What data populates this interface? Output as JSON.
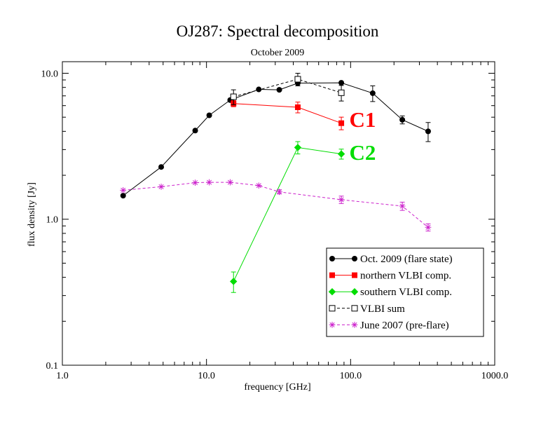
{
  "chart_data": {
    "type": "line",
    "title": "OJ287: Spectral decomposition",
    "subtitle": "October 2009",
    "xlabel": "frequency [GHz]",
    "ylabel": "flux density [Jy]",
    "xscale": "log",
    "yscale": "log",
    "xlim": [
      1.0,
      1000.0
    ],
    "ylim": [
      0.1,
      12.0
    ],
    "x_ticks": [
      {
        "value": 1.0,
        "label": "1.0"
      },
      {
        "value": 10.0,
        "label": "10.0"
      },
      {
        "value": 100.0,
        "label": "100.0"
      },
      {
        "value": 1000.0,
        "label": "1000.0"
      }
    ],
    "y_ticks": [
      {
        "value": 0.1,
        "label": "0.1"
      },
      {
        "value": 1.0,
        "label": "1.0"
      },
      {
        "value": 10.0,
        "label": "10.0"
      }
    ],
    "legend_position": "bottom-right",
    "series": [
      {
        "name": "Oct. 2009 (flare state)",
        "color": "#000000",
        "marker": "circle",
        "line": "solid",
        "x": [
          2.64,
          4.85,
          8.35,
          10.45,
          14.6,
          23.05,
          32.0,
          43.0,
          86.2,
          142.3,
          228.4,
          345.0
        ],
        "y": [
          1.45,
          2.28,
          4.05,
          5.15,
          6.55,
          7.75,
          7.7,
          8.55,
          8.6,
          7.3,
          4.8,
          4.0
        ],
        "err": [
          0,
          0,
          0,
          0,
          0,
          0,
          0,
          0,
          0,
          0.9,
          0.3,
          0.6
        ]
      },
      {
        "name": "northern VLBI comp.",
        "color": "#ff0000",
        "marker": "square",
        "line": "solid",
        "x": [
          15.4,
          43.0,
          86.2
        ],
        "y": [
          6.2,
          5.85,
          4.55
        ],
        "err": [
          0.3,
          0.5,
          0.45
        ]
      },
      {
        "name": "southern VLBI comp.",
        "color": "#00dd00",
        "marker": "diamond",
        "line": "solid",
        "x": [
          15.4,
          43.0,
          86.2
        ],
        "y": [
          0.375,
          3.1,
          2.8
        ],
        "err": [
          0.06,
          0.3,
          0.22
        ]
      },
      {
        "name": "VLBI sum",
        "color": "#000000",
        "marker": "open-square",
        "line": "dashed",
        "x": [
          15.4,
          43.0,
          86.2
        ],
        "y": [
          6.9,
          9.1,
          7.35
        ],
        "err": [
          0.8,
          0.9,
          0.9
        ]
      },
      {
        "name": "June 2007 (pre-flare)",
        "color": "#cc22cc",
        "marker": "star",
        "line": "dashed",
        "x": [
          2.64,
          4.85,
          8.35,
          10.45,
          14.6,
          23.05,
          32.0,
          86.2,
          228.4,
          345.0
        ],
        "y": [
          1.58,
          1.67,
          1.78,
          1.79,
          1.79,
          1.7,
          1.54,
          1.36,
          1.23,
          0.88
        ],
        "err": [
          0,
          0,
          0,
          0,
          0,
          0,
          0.05,
          0.08,
          0.08,
          0.05
        ]
      }
    ],
    "annotations": [
      {
        "text": "C1",
        "color": "#ff0000",
        "x": 98.0,
        "y": 4.3
      },
      {
        "text": "C2",
        "color": "#00dd00",
        "x": 98.0,
        "y": 2.55
      }
    ]
  }
}
